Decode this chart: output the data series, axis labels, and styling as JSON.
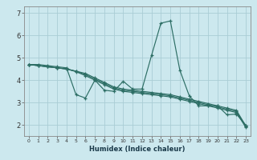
{
  "xlabel": "Humidex (Indice chaleur)",
  "background_color": "#cce8ee",
  "grid_color": "#aacdd5",
  "line_color": "#2d6e65",
  "xlim": [
    -0.5,
    23.5
  ],
  "ylim": [
    1.5,
    7.3
  ],
  "xticks": [
    0,
    1,
    2,
    3,
    4,
    5,
    6,
    7,
    8,
    9,
    10,
    11,
    12,
    13,
    14,
    15,
    16,
    17,
    18,
    19,
    20,
    21,
    22,
    23
  ],
  "yticks": [
    2,
    3,
    4,
    5,
    6,
    7
  ],
  "series": [
    [
      4.7,
      4.7,
      4.65,
      4.6,
      4.55,
      3.35,
      3.2,
      4.0,
      3.55,
      3.5,
      3.95,
      3.6,
      3.6,
      5.1,
      6.55,
      6.65,
      4.45,
      3.3,
      2.85,
      2.85,
      2.85,
      2.45,
      2.48,
      1.98
    ],
    [
      4.7,
      4.65,
      4.6,
      4.55,
      4.5,
      4.4,
      4.3,
      4.1,
      3.9,
      3.7,
      3.6,
      3.55,
      3.5,
      3.45,
      3.4,
      3.35,
      3.25,
      3.15,
      3.05,
      2.95,
      2.85,
      2.75,
      2.65,
      1.95
    ],
    [
      4.7,
      4.65,
      4.6,
      4.55,
      4.5,
      4.4,
      4.25,
      4.05,
      3.85,
      3.65,
      3.55,
      3.5,
      3.45,
      3.4,
      3.35,
      3.3,
      3.2,
      3.1,
      3.0,
      2.9,
      2.8,
      2.7,
      2.6,
      1.92
    ],
    [
      4.7,
      4.65,
      4.6,
      4.55,
      4.5,
      4.38,
      4.2,
      4.0,
      3.8,
      3.6,
      3.5,
      3.45,
      3.4,
      3.35,
      3.3,
      3.25,
      3.15,
      3.05,
      2.95,
      2.85,
      2.75,
      2.65,
      2.55,
      1.88
    ]
  ]
}
